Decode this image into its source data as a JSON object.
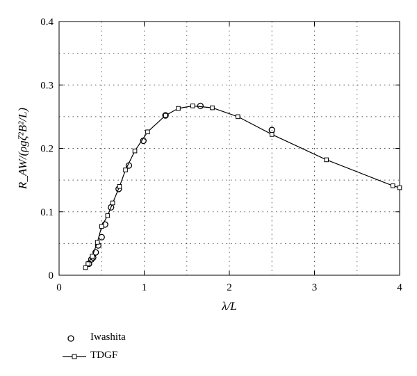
{
  "chart_data": {
    "type": "scatter",
    "title": "",
    "xlabel": "λ/L",
    "ylabel": "R_AW/(ρgζ²B²/L)",
    "xlim": [
      0,
      4
    ],
    "ylim": [
      0,
      0.4
    ],
    "x_ticks": [
      "0",
      "1",
      "2",
      "3",
      "4"
    ],
    "y_ticks": [
      "0",
      "0.1",
      "0.2",
      "0.3",
      "0.4"
    ],
    "grid": true,
    "legend_position": "bottom-left",
    "series": [
      {
        "name": "Iwashita",
        "marker": "circle",
        "line": false,
        "color": "#000000",
        "points": [
          [
            0.35,
            0.018
          ],
          [
            0.38,
            0.025
          ],
          [
            0.4,
            0.028
          ],
          [
            0.43,
            0.036
          ],
          [
            0.46,
            0.047
          ],
          [
            0.5,
            0.06
          ],
          [
            0.54,
            0.08
          ],
          [
            0.61,
            0.107
          ],
          [
            0.7,
            0.136
          ],
          [
            0.82,
            0.173
          ],
          [
            0.99,
            0.212
          ],
          [
            1.25,
            0.252
          ],
          [
            1.66,
            0.267
          ],
          [
            2.5,
            0.229
          ]
        ]
      },
      {
        "name": "TDGF",
        "marker": "square",
        "line": true,
        "color": "#000000",
        "points": [
          [
            0.31,
            0.012
          ],
          [
            0.34,
            0.018
          ],
          [
            0.39,
            0.03
          ],
          [
            0.45,
            0.052
          ],
          [
            0.5,
            0.077
          ],
          [
            0.57,
            0.094
          ],
          [
            0.63,
            0.114
          ],
          [
            0.71,
            0.14
          ],
          [
            0.78,
            0.166
          ],
          [
            0.89,
            0.196
          ],
          [
            1.04,
            0.226
          ],
          [
            1.25,
            0.252
          ],
          [
            1.4,
            0.263
          ],
          [
            1.57,
            0.267
          ],
          [
            1.8,
            0.264
          ],
          [
            2.1,
            0.25
          ],
          [
            2.5,
            0.222
          ],
          [
            3.14,
            0.182
          ],
          [
            3.92,
            0.141
          ],
          [
            4.0,
            0.138
          ]
        ]
      }
    ]
  }
}
